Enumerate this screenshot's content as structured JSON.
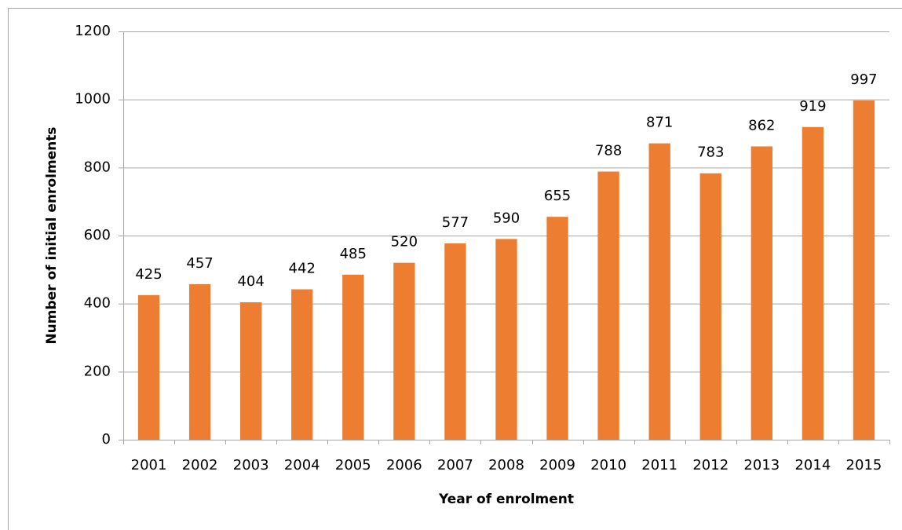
{
  "chart_data": {
    "type": "bar",
    "x_label": "Year of enrolment",
    "y_label": "Number of initial enrolments",
    "categories": [
      "2001",
      "2002",
      "2003",
      "2004",
      "2005",
      "2006",
      "2007",
      "2008",
      "2009",
      "2010",
      "2011",
      "2012",
      "2013",
      "2014",
      "2015"
    ],
    "values": [
      425,
      457,
      404,
      442,
      485,
      520,
      577,
      590,
      655,
      788,
      871,
      783,
      862,
      919,
      997
    ],
    "color": "#ed7d31",
    "ylim": [
      0,
      1200
    ],
    "yticks": [
      0,
      200,
      400,
      600,
      800,
      1000,
      1200
    ],
    "grid": true
  }
}
